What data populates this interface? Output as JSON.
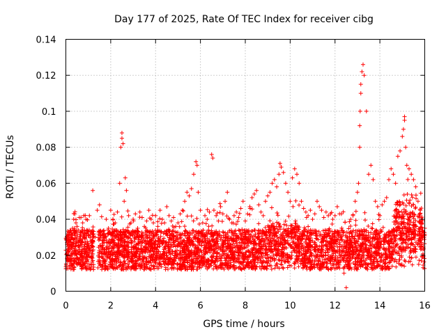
{
  "chart_data": {
    "type": "scatter",
    "title": "Day 177 of 2025, Rate Of TEC Index for receiver cibg",
    "xlabel": "GPS time / hours",
    "ylabel": "ROTI / TECUs",
    "xlim": [
      0,
      16
    ],
    "ylim": [
      0,
      0.14
    ],
    "xticks": [
      0,
      2,
      4,
      6,
      8,
      10,
      12,
      14,
      16
    ],
    "xtick_labels": [
      "0",
      "2",
      "4",
      "6",
      "8",
      "10",
      "12",
      "14",
      "16"
    ],
    "yticks": [
      0,
      0.02,
      0.04,
      0.06,
      0.08,
      0.1,
      0.12,
      0.14
    ],
    "ytick_labels": [
      "0",
      "0.02",
      "0.04",
      "0.06",
      "0.08",
      "0.1",
      "0.12",
      "0.14"
    ],
    "grid": true,
    "marker": "+",
    "color": "#ff0000",
    "series": [
      {
        "name": "ROTI",
        "x": [
          0.05,
          0.1,
          0.15,
          0.2,
          0.25,
          0.3,
          0.35,
          0.4,
          0.45,
          0.5,
          0.55,
          0.6,
          0.65,
          0.7,
          0.75,
          0.8,
          0.85,
          0.9,
          0.95,
          1.0,
          1.05,
          1.1,
          1.15,
          1.2,
          1.3,
          1.4,
          1.5,
          1.6,
          1.7,
          1.8,
          1.9,
          2.0,
          2.1,
          2.2,
          2.3,
          2.4,
          2.45,
          2.5,
          2.5,
          2.55,
          2.6,
          2.65,
          2.7,
          2.8,
          2.9,
          3.0,
          3.1,
          3.2,
          3.3,
          3.4,
          3.5,
          3.6,
          3.7,
          3.8,
          3.9,
          4.0,
          4.1,
          4.2,
          4.3,
          4.4,
          4.5,
          4.6,
          4.7,
          4.8,
          4.9,
          5.0,
          5.1,
          5.2,
          5.3,
          5.4,
          5.5,
          5.6,
          5.7,
          5.8,
          5.85,
          5.9,
          6.0,
          6.1,
          6.2,
          6.3,
          6.4,
          6.5,
          6.55,
          6.6,
          6.7,
          6.8,
          6.9,
          7.0,
          7.1,
          7.2,
          7.3,
          7.4,
          7.5,
          7.6,
          7.7,
          7.8,
          7.9,
          8.0,
          8.1,
          8.2,
          8.3,
          8.4,
          8.5,
          8.6,
          8.7,
          8.8,
          8.9,
          9.0,
          9.1,
          9.2,
          9.3,
          9.4,
          9.5,
          9.55,
          9.6,
          9.7,
          9.8,
          9.9,
          10.0,
          10.1,
          10.2,
          10.3,
          10.4,
          10.5,
          10.6,
          10.7,
          10.8,
          10.9,
          11.0,
          11.1,
          11.2,
          11.3,
          11.4,
          11.5,
          11.6,
          11.7,
          11.8,
          11.9,
          12.0,
          12.1,
          12.2,
          12.3,
          12.4,
          12.5,
          12.6,
          12.7,
          12.8,
          12.9,
          13.0,
          13.05,
          13.1,
          13.1,
          13.12,
          13.15,
          13.15,
          13.2,
          13.25,
          13.3,
          13.4,
          13.5,
          13.6,
          13.7,
          13.8,
          13.9,
          14.0,
          14.1,
          14.2,
          14.3,
          14.4,
          14.5,
          14.6,
          14.7,
          14.8,
          14.9,
          15.0,
          15.05,
          15.1,
          15.1,
          15.15,
          15.2,
          15.3,
          15.4,
          15.5,
          15.6,
          15.7,
          15.8,
          15.9,
          16.0
        ],
        "y": [
          0.018,
          0.022,
          0.025,
          0.03,
          0.021,
          0.035,
          0.04,
          0.043,
          0.038,
          0.036,
          0.025,
          0.041,
          0.033,
          0.022,
          0.038,
          0.042,
          0.029,
          0.04,
          0.034,
          0.031,
          0.042,
          0.033,
          0.028,
          0.056,
          0.03,
          0.045,
          0.048,
          0.025,
          0.028,
          0.04,
          0.035,
          0.045,
          0.04,
          0.038,
          0.044,
          0.06,
          0.08,
          0.088,
          0.085,
          0.082,
          0.05,
          0.063,
          0.056,
          0.042,
          0.038,
          0.04,
          0.043,
          0.035,
          0.044,
          0.041,
          0.036,
          0.039,
          0.045,
          0.04,
          0.038,
          0.042,
          0.036,
          0.045,
          0.04,
          0.038,
          0.047,
          0.042,
          0.039,
          0.041,
          0.036,
          0.038,
          0.043,
          0.045,
          0.05,
          0.055,
          0.053,
          0.057,
          0.065,
          0.072,
          0.07,
          0.055,
          0.045,
          0.038,
          0.042,
          0.04,
          0.044,
          0.076,
          0.074,
          0.045,
          0.042,
          0.039,
          0.047,
          0.043,
          0.05,
          0.055,
          0.04,
          0.038,
          0.042,
          0.044,
          0.041,
          0.046,
          0.05,
          0.039,
          0.043,
          0.047,
          0.052,
          0.054,
          0.056,
          0.048,
          0.044,
          0.042,
          0.05,
          0.053,
          0.055,
          0.06,
          0.062,
          0.058,
          0.065,
          0.071,
          0.069,
          0.066,
          0.06,
          0.055,
          0.05,
          0.063,
          0.068,
          0.065,
          0.06,
          0.05,
          0.046,
          0.044,
          0.042,
          0.045,
          0.04,
          0.043,
          0.05,
          0.047,
          0.045,
          0.041,
          0.044,
          0.042,
          0.043,
          0.04,
          0.042,
          0.047,
          0.043,
          0.02,
          0.01,
          0.002,
          0.015,
          0.04,
          0.042,
          0.05,
          0.055,
          0.06,
          0.08,
          0.092,
          0.1,
          0.11,
          0.115,
          0.122,
          0.126,
          0.12,
          0.1,
          0.065,
          0.07,
          0.062,
          0.05,
          0.047,
          0.042,
          0.048,
          0.05,
          0.052,
          0.062,
          0.068,
          0.065,
          0.06,
          0.075,
          0.078,
          0.086,
          0.09,
          0.097,
          0.095,
          0.08,
          0.07,
          0.068,
          0.065,
          0.062,
          0.058,
          0.05,
          0.045,
          0.04,
          0.035
        ]
      }
    ]
  }
}
